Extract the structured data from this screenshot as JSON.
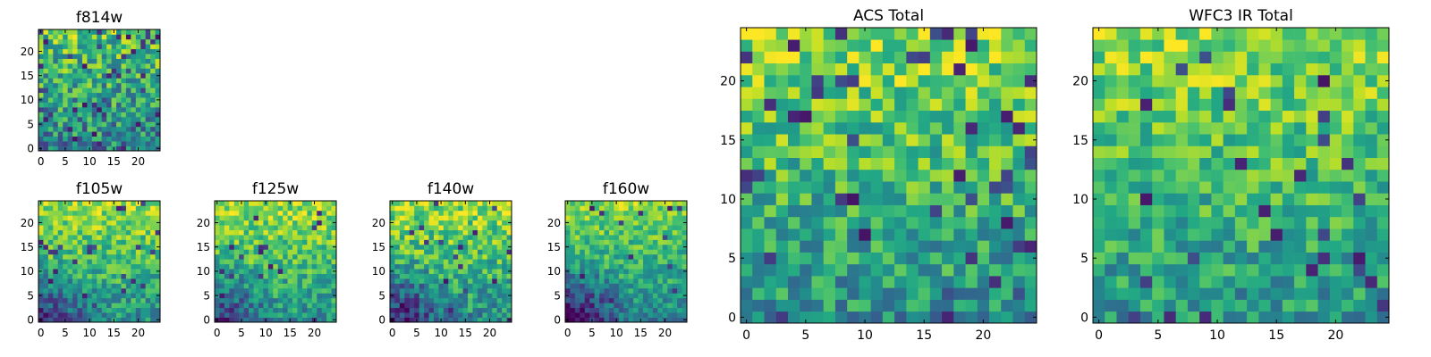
{
  "chart_data": [
    {
      "type": "heatmap",
      "title": "f814w",
      "grid_size": [
        25,
        25
      ],
      "x_ticks": [
        "0",
        "5",
        "10",
        "15",
        "20"
      ],
      "y_ticks": [
        "0",
        "5",
        "10",
        "15",
        "20"
      ],
      "xlim": [
        -0.5,
        24.5
      ],
      "ylim": [
        -0.5,
        24.5
      ],
      "colormap": "viridis",
      "pattern": {
        "top": 0.72,
        "bottom": 0.44,
        "noise": 0.28,
        "corner": 0.0,
        "dark_frac": 0.08,
        "seed": 11
      },
      "grid": false
    },
    {
      "type": "heatmap",
      "title": "f105w",
      "grid_size": [
        25,
        25
      ],
      "x_ticks": [
        "0",
        "5",
        "10",
        "15",
        "20"
      ],
      "y_ticks": [
        "0",
        "5",
        "10",
        "15",
        "20"
      ],
      "xlim": [
        -0.5,
        24.5
      ],
      "ylim": [
        -0.5,
        24.5
      ],
      "colormap": "viridis",
      "pattern": {
        "top": 0.86,
        "bottom": 0.5,
        "noise": 0.2,
        "corner": 0.35,
        "dark_frac": 0.03,
        "seed": 23
      },
      "grid": false
    },
    {
      "type": "heatmap",
      "title": "f125w",
      "grid_size": [
        25,
        25
      ],
      "x_ticks": [
        "0",
        "5",
        "10",
        "15",
        "20"
      ],
      "y_ticks": [
        "0",
        "5",
        "10",
        "15",
        "20"
      ],
      "xlim": [
        -0.5,
        24.5
      ],
      "ylim": [
        -0.5,
        24.5
      ],
      "colormap": "viridis",
      "pattern": {
        "top": 0.86,
        "bottom": 0.5,
        "noise": 0.2,
        "corner": 0.35,
        "dark_frac": 0.03,
        "seed": 37
      },
      "grid": false
    },
    {
      "type": "heatmap",
      "title": "f140w",
      "grid_size": [
        25,
        25
      ],
      "x_ticks": [
        "0",
        "5",
        "10",
        "15",
        "20"
      ],
      "y_ticks": [
        "0",
        "5",
        "10",
        "15",
        "20"
      ],
      "xlim": [
        -0.5,
        24.5
      ],
      "ylim": [
        -0.5,
        24.5
      ],
      "colormap": "viridis",
      "pattern": {
        "top": 0.85,
        "bottom": 0.48,
        "noise": 0.22,
        "corner": 0.45,
        "dark_frac": 0.03,
        "seed": 41
      },
      "grid": false
    },
    {
      "type": "heatmap",
      "title": "f160w",
      "grid_size": [
        25,
        25
      ],
      "x_ticks": [
        "0",
        "5",
        "10",
        "15",
        "20"
      ],
      "y_ticks": [
        "0",
        "5",
        "10",
        "15",
        "20"
      ],
      "xlim": [
        -0.5,
        24.5
      ],
      "ylim": [
        -0.5,
        24.5
      ],
      "colormap": "viridis",
      "pattern": {
        "top": 0.82,
        "bottom": 0.45,
        "noise": 0.18,
        "corner": 0.5,
        "dark_frac": 0.02,
        "seed": 53
      },
      "grid": false
    },
    {
      "type": "heatmap",
      "title": "ACS Total",
      "grid_size": [
        25,
        25
      ],
      "x_ticks": [
        "0",
        "5",
        "10",
        "15",
        "20"
      ],
      "y_ticks": [
        "0",
        "5",
        "10",
        "15",
        "20"
      ],
      "xlim": [
        -0.5,
        24.5
      ],
      "ylim": [
        -0.5,
        24.5
      ],
      "colormap": "viridis",
      "pattern": {
        "top": 0.84,
        "bottom": 0.5,
        "noise": 0.22,
        "corner": 0.0,
        "dark_frac": 0.06,
        "seed": 67
      },
      "grid": false
    },
    {
      "type": "heatmap",
      "title": "WFC3 IR Total",
      "grid_size": [
        25,
        25
      ],
      "x_ticks": [
        "0",
        "5",
        "10",
        "15",
        "20"
      ],
      "y_ticks": [
        "0",
        "5",
        "10",
        "15",
        "20"
      ],
      "xlim": [
        -0.5,
        24.5
      ],
      "ylim": [
        -0.5,
        24.5
      ],
      "colormap": "viridis",
      "pattern": {
        "top": 0.84,
        "bottom": 0.52,
        "noise": 0.2,
        "corner": 0.0,
        "dark_frac": 0.05,
        "seed": 79
      },
      "grid": false
    }
  ]
}
